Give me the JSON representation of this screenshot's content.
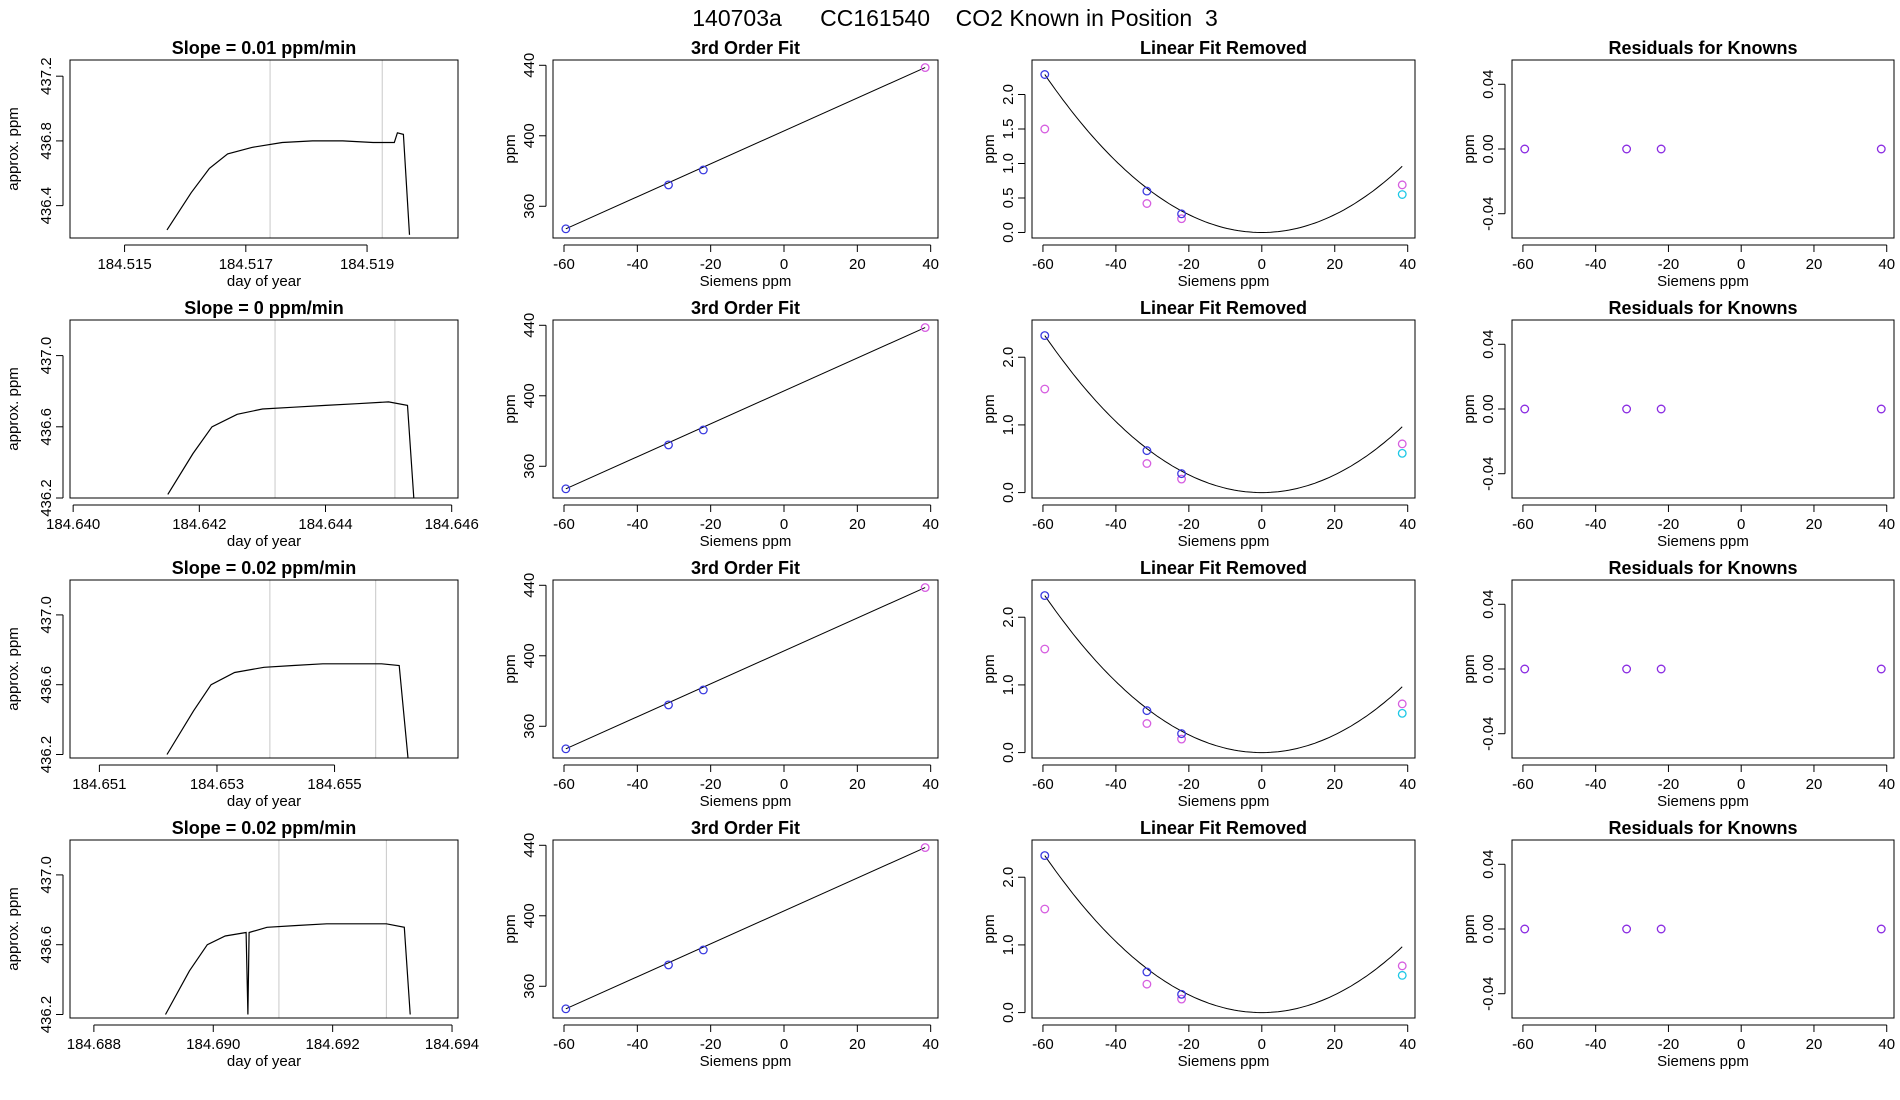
{
  "title": "140703a      CC161540    CO2 Known in Position  3",
  "colors": {
    "curve": "#000000",
    "vline": "#c8c8c8",
    "trace_highlight": "#ff0000",
    "pt_blue": "#3a3ae0",
    "pt_pink": "#d65ee0",
    "pt_cyan": "#1ec8e6",
    "pt_purple": "#8a2be2"
  },
  "chart_data": [
    {
      "row": 0,
      "type": "line",
      "title": "Slope =  0.01  ppm/min",
      "xlabel": "day of year",
      "ylabel": "approx. ppm",
      "xlim": [
        184.5141,
        184.5205
      ],
      "ylim": [
        436.2,
        437.3
      ],
      "xticks": [
        "184.515",
        "184.517",
        "184.519"
      ],
      "yticks": [
        "436.4",
        "436.8",
        "437.2"
      ],
      "vlines": [
        184.5174,
        184.51925
      ],
      "series": [
        {
          "name": "trace",
          "segments": [
            {
              "x": [
                184.5157,
                184.5161,
                184.5164,
                184.5167,
                184.5171,
                184.5176,
                184.5181,
                184.5186,
                184.5191,
                184.51945,
                184.5195,
                184.5196,
                184.5197
              ],
              "y": [
                436.25,
                436.48,
                436.63,
                436.72,
                436.76,
                436.79,
                436.8,
                436.8,
                436.79,
                436.79,
                436.85,
                436.84,
                436.22
              ]
            }
          ]
        }
      ]
    },
    {
      "row": 0,
      "type": "scatter+line",
      "title": "3rd Order Fit",
      "xlabel": "Siemens ppm",
      "ylabel": "ppm",
      "xlim": [
        -63,
        42
      ],
      "ylim": [
        342,
        443
      ],
      "xticks": [
        "-60",
        "-40",
        "-20",
        "0",
        "20",
        "40"
      ],
      "yticks": [
        "360",
        "400",
        "440"
      ],
      "fit_line": {
        "x": [
          -59.5,
          38.5
        ],
        "y": [
          347.2,
          438.7
        ]
      },
      "points": [
        {
          "x": -59.5,
          "y": 347.2
        },
        {
          "x": -31.5,
          "y": 372.1
        },
        {
          "x": -22,
          "y": 380.6
        },
        {
          "x": 38.5,
          "y": 438.7
        }
      ]
    },
    {
      "row": 0,
      "type": "scatter+curve",
      "title": "Linear Fit Removed",
      "xlabel": "Siemens ppm",
      "ylabel": "ppm",
      "xlim": [
        -63,
        42
      ],
      "ylim": [
        -0.08,
        2.5
      ],
      "xticks": [
        "-60",
        "-40",
        "-20",
        "0",
        "20",
        "40"
      ],
      "yticks": [
        "0.0",
        "0.5",
        "1.0",
        "1.5",
        "2.0"
      ],
      "curve_vertex": {
        "x": 0,
        "y": 0
      },
      "points_blue": [
        {
          "x": -59.5,
          "y": 2.29
        },
        {
          "x": -31.5,
          "y": 0.6
        },
        {
          "x": -22,
          "y": 0.27
        }
      ],
      "points_pink": [
        {
          "x": -59.5,
          "y": 1.5
        },
        {
          "x": -31.5,
          "y": 0.42
        },
        {
          "x": -22,
          "y": 0.2
        },
        {
          "x": 38.5,
          "y": 0.69
        }
      ],
      "points_cyan": [
        {
          "x": 38.5,
          "y": 0.55
        }
      ]
    },
    {
      "row": 0,
      "type": "scatter",
      "title": "Residuals for Knowns",
      "xlabel": "Siemens ppm",
      "ylabel": "ppm",
      "xlim": [
        -63,
        42
      ],
      "ylim": [
        -0.055,
        0.055
      ],
      "xticks": [
        "-60",
        "-40",
        "-20",
        "0",
        "20",
        "40"
      ],
      "yticks": [
        "-0.04",
        "0.00",
        "0.04"
      ],
      "points": [
        {
          "x": -59.5,
          "y": 0
        },
        {
          "x": -31.5,
          "y": 0
        },
        {
          "x": -22,
          "y": 0
        },
        {
          "x": 38.5,
          "y": 0
        }
      ]
    },
    {
      "row": 1,
      "type": "line",
      "title": "Slope =  0  ppm/min",
      "xlabel": "day of year",
      "ylabel": "approx. ppm",
      "xlim": [
        184.63995,
        184.6461
      ],
      "ylim": [
        436.2,
        437.2
      ],
      "xticks": [
        "184.640",
        "184.642",
        "184.644",
        "184.646"
      ],
      "yticks": [
        "436.2",
        "436.6",
        "437.0"
      ],
      "vlines": [
        184.6432,
        184.6451
      ],
      "series": [
        {
          "name": "trace",
          "segments": [
            {
              "x": [
                184.6415,
                184.6419,
                184.6422,
                184.6426,
                184.643,
                184.6435,
                184.644,
                184.6445,
                184.645,
                184.6453,
                184.6454
              ],
              "y": [
                436.22,
                436.45,
                436.6,
                436.67,
                436.7,
                436.71,
                436.72,
                436.73,
                436.74,
                436.72,
                436.2
              ]
            }
          ]
        }
      ]
    },
    {
      "row": 1,
      "type": "scatter+line",
      "title": "3rd Order Fit",
      "xlabel": "Siemens ppm",
      "ylabel": "ppm",
      "xlim": [
        -63,
        42
      ],
      "ylim": [
        342,
        443
      ],
      "xticks": [
        "-60",
        "-40",
        "-20",
        "0",
        "20",
        "40"
      ],
      "yticks": [
        "360",
        "400",
        "440"
      ],
      "fit_line": {
        "x": [
          -59.5,
          38.5
        ],
        "y": [
          347.2,
          438.7
        ]
      },
      "points": [
        {
          "x": -59.5,
          "y": 347.2
        },
        {
          "x": -31.5,
          "y": 372.1
        },
        {
          "x": -22,
          "y": 380.6
        },
        {
          "x": 38.5,
          "y": 438.7
        }
      ]
    },
    {
      "row": 1,
      "type": "scatter+curve",
      "title": "Linear Fit Removed",
      "xlabel": "Siemens ppm",
      "ylabel": "ppm",
      "xlim": [
        -63,
        42
      ],
      "ylim": [
        -0.08,
        2.55
      ],
      "xticks": [
        "-60",
        "-40",
        "-20",
        "0",
        "20",
        "40"
      ],
      "yticks": [
        "0.0",
        "1.0",
        "2.0"
      ],
      "curve_vertex": {
        "x": 0,
        "y": 0
      },
      "points_blue": [
        {
          "x": -59.5,
          "y": 2.32
        },
        {
          "x": -31.5,
          "y": 0.62
        },
        {
          "x": -22,
          "y": 0.28
        }
      ],
      "points_pink": [
        {
          "x": -59.5,
          "y": 1.53
        },
        {
          "x": -31.5,
          "y": 0.43
        },
        {
          "x": -22,
          "y": 0.2
        },
        {
          "x": 38.5,
          "y": 0.72
        }
      ],
      "points_cyan": [
        {
          "x": 38.5,
          "y": 0.58
        }
      ]
    },
    {
      "row": 1,
      "type": "scatter",
      "title": "Residuals for Knowns",
      "xlabel": "Siemens ppm",
      "ylabel": "ppm",
      "xlim": [
        -63,
        42
      ],
      "ylim": [
        -0.055,
        0.055
      ],
      "xticks": [
        "-60",
        "-40",
        "-20",
        "0",
        "20",
        "40"
      ],
      "yticks": [
        "-0.04",
        "0.00",
        "0.04"
      ],
      "points": [
        {
          "x": -59.5,
          "y": 0
        },
        {
          "x": -31.5,
          "y": 0
        },
        {
          "x": -22,
          "y": 0
        },
        {
          "x": 38.5,
          "y": 0
        }
      ]
    },
    {
      "row": 2,
      "type": "line",
      "title": "Slope =  0.02  ppm/min",
      "xlabel": "day of year",
      "ylabel": "approx. ppm",
      "xlim": [
        184.6505,
        184.6571
      ],
      "ylim": [
        436.18,
        437.2
      ],
      "xticks": [
        "184.651",
        "184.653",
        "184.655"
      ],
      "yticks": [
        "436.2",
        "436.6",
        "437.0"
      ],
      "vlines": [
        184.6539,
        184.6557
      ],
      "series": [
        {
          "name": "trace",
          "segments": [
            {
              "x": [
                184.65215,
                184.6526,
                184.6529,
                184.6533,
                184.6538,
                184.6543,
                184.6548,
                184.6553,
                184.6558,
                184.6561,
                184.65625
              ],
              "y": [
                436.2,
                436.45,
                436.6,
                436.67,
                436.7,
                436.71,
                436.72,
                436.72,
                436.72,
                436.71,
                436.18
              ]
            }
          ]
        }
      ]
    },
    {
      "row": 2,
      "type": "scatter+line",
      "title": "3rd Order Fit",
      "xlabel": "Siemens ppm",
      "ylabel": "ppm",
      "xlim": [
        -63,
        42
      ],
      "ylim": [
        342,
        443
      ],
      "xticks": [
        "-60",
        "-40",
        "-20",
        "0",
        "20",
        "40"
      ],
      "yticks": [
        "360",
        "400",
        "440"
      ],
      "fit_line": {
        "x": [
          -59.5,
          38.5
        ],
        "y": [
          347.2,
          438.7
        ]
      },
      "points": [
        {
          "x": -59.5,
          "y": 347.2
        },
        {
          "x": -31.5,
          "y": 372.1
        },
        {
          "x": -22,
          "y": 380.6
        },
        {
          "x": 38.5,
          "y": 438.7
        }
      ]
    },
    {
      "row": 2,
      "type": "scatter+curve",
      "title": "Linear Fit Removed",
      "xlabel": "Siemens ppm",
      "ylabel": "ppm",
      "xlim": [
        -63,
        42
      ],
      "ylim": [
        -0.08,
        2.55
      ],
      "xticks": [
        "-60",
        "-40",
        "-20",
        "0",
        "20",
        "40"
      ],
      "yticks": [
        "0.0",
        "1.0",
        "2.0"
      ],
      "curve_vertex": {
        "x": 0,
        "y": 0
      },
      "points_blue": [
        {
          "x": -59.5,
          "y": 2.32
        },
        {
          "x": -31.5,
          "y": 0.62
        },
        {
          "x": -22,
          "y": 0.28
        }
      ],
      "points_pink": [
        {
          "x": -59.5,
          "y": 1.53
        },
        {
          "x": -31.5,
          "y": 0.43
        },
        {
          "x": -22,
          "y": 0.2
        },
        {
          "x": 38.5,
          "y": 0.72
        }
      ],
      "points_cyan": [
        {
          "x": 38.5,
          "y": 0.58
        }
      ]
    },
    {
      "row": 2,
      "type": "scatter",
      "title": "Residuals for Knowns",
      "xlabel": "Siemens ppm",
      "ylabel": "ppm",
      "xlim": [
        -63,
        42
      ],
      "ylim": [
        -0.055,
        0.055
      ],
      "xticks": [
        "-60",
        "-40",
        "-20",
        "0",
        "20",
        "40"
      ],
      "yticks": [
        "-0.04",
        "0.00",
        "0.04"
      ],
      "points": [
        {
          "x": -59.5,
          "y": 0
        },
        {
          "x": -31.5,
          "y": 0
        },
        {
          "x": -22,
          "y": 0
        },
        {
          "x": 38.5,
          "y": 0
        }
      ]
    },
    {
      "row": 3,
      "type": "line",
      "title": "Slope =  0.02  ppm/min",
      "xlabel": "day of year",
      "ylabel": "approx. ppm",
      "xlim": [
        184.6876,
        184.6941
      ],
      "ylim": [
        436.18,
        437.2
      ],
      "xticks": [
        "184.688",
        "184.690",
        "184.692",
        "184.694"
      ],
      "yticks": [
        "436.2",
        "436.6",
        "437.0"
      ],
      "vlines": [
        184.6911,
        184.6929
      ],
      "series": [
        {
          "name": "trace",
          "segments": [
            {
              "x": [
                184.6892,
                184.6896,
                184.6899,
                184.6902,
                184.69055,
                184.69058,
                184.6906,
                184.6909,
                184.6914,
                184.6919,
                184.6924,
                184.6929,
                184.6932,
                184.6933
              ],
              "y": [
                436.2,
                436.45,
                436.6,
                436.65,
                436.67,
                436.2,
                436.67,
                436.7,
                436.71,
                436.72,
                436.72,
                436.72,
                436.7,
                436.2
              ]
            }
          ]
        }
      ]
    },
    {
      "row": 3,
      "type": "scatter+line",
      "title": "3rd Order Fit",
      "xlabel": "Siemens ppm",
      "ylabel": "ppm",
      "xlim": [
        -63,
        42
      ],
      "ylim": [
        342,
        443
      ],
      "xticks": [
        "-60",
        "-40",
        "-20",
        "0",
        "20",
        "40"
      ],
      "yticks": [
        "360",
        "400",
        "440"
      ],
      "fit_line": {
        "x": [
          -59.5,
          38.5
        ],
        "y": [
          347.2,
          438.7
        ]
      },
      "points": [
        {
          "x": -59.5,
          "y": 347.2
        },
        {
          "x": -31.5,
          "y": 372.1
        },
        {
          "x": -22,
          "y": 380.6
        },
        {
          "x": 38.5,
          "y": 438.7
        }
      ]
    },
    {
      "row": 3,
      "type": "scatter+curve",
      "title": "Linear Fit Removed",
      "xlabel": "Siemens ppm",
      "ylabel": "ppm",
      "xlim": [
        -63,
        42
      ],
      "ylim": [
        -0.08,
        2.55
      ],
      "xticks": [
        "-60",
        "-40",
        "-20",
        "0",
        "20",
        "40"
      ],
      "yticks": [
        "0.0",
        "1.0",
        "2.0"
      ],
      "curve_vertex": {
        "x": 0,
        "y": 0
      },
      "points_blue": [
        {
          "x": -59.5,
          "y": 2.32
        },
        {
          "x": -31.5,
          "y": 0.6
        },
        {
          "x": -22,
          "y": 0.27
        }
      ],
      "points_pink": [
        {
          "x": -59.5,
          "y": 1.53
        },
        {
          "x": -31.5,
          "y": 0.42
        },
        {
          "x": -22,
          "y": 0.2
        },
        {
          "x": 38.5,
          "y": 0.69
        }
      ],
      "points_cyan": [
        {
          "x": 38.5,
          "y": 0.55
        }
      ]
    },
    {
      "row": 3,
      "type": "scatter",
      "title": "Residuals for Knowns",
      "xlabel": "Siemens ppm",
      "ylabel": "ppm",
      "xlim": [
        -63,
        42
      ],
      "ylim": [
        -0.055,
        0.055
      ],
      "xticks": [
        "-60",
        "-40",
        "-20",
        "0",
        "20",
        "40"
      ],
      "yticks": [
        "-0.04",
        "0.00",
        "0.04"
      ],
      "points": [
        {
          "x": -59.5,
          "y": 0
        },
        {
          "x": -31.5,
          "y": 0
        },
        {
          "x": -22,
          "y": 0
        },
        {
          "x": 38.5,
          "y": 0
        }
      ]
    }
  ]
}
